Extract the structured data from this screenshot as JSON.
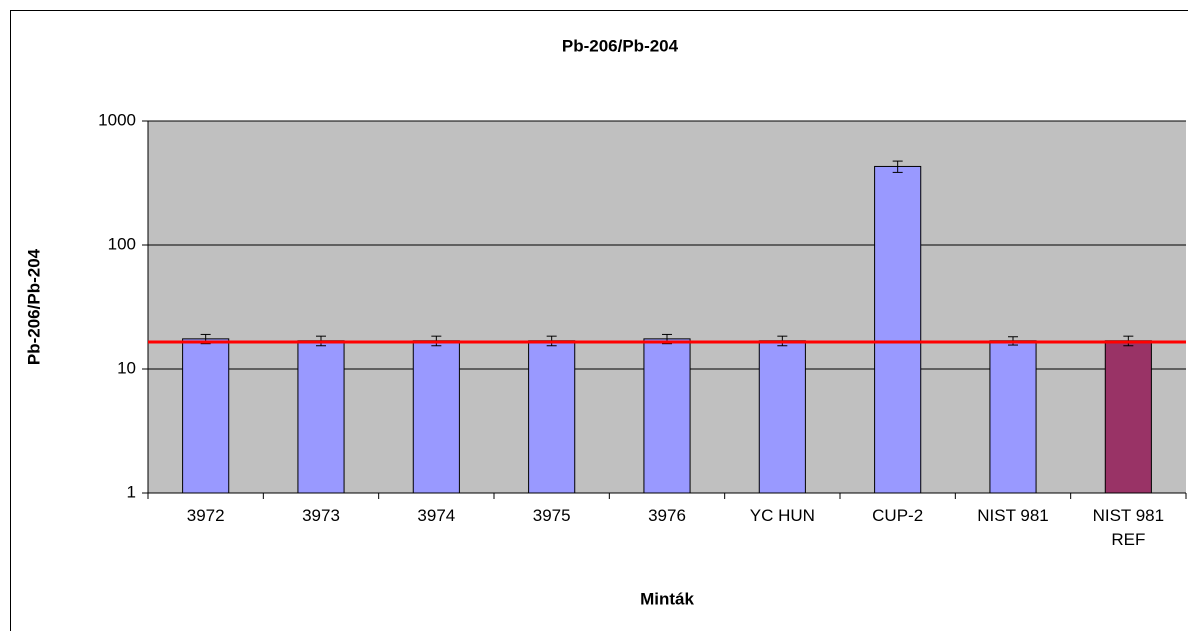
{
  "chart_data": {
    "type": "bar",
    "title": "Pb-206/Pb-204",
    "y_label": "Pb-206/Pb-204",
    "x_label": "Minták",
    "categories": [
      "3972",
      "3973",
      "3974",
      "3975",
      "3976",
      "YC HUN",
      "CUP-2",
      "NIST 981",
      "NIST 981 REF"
    ],
    "values": [
      17.5,
      16.9,
      16.9,
      16.9,
      17.5,
      16.9,
      430,
      16.9,
      16.9
    ],
    "errors": [
      1.5,
      1.5,
      1.5,
      1.5,
      1.5,
      1.5,
      45,
      1.3,
      1.5
    ],
    "colors": [
      "#9999ff",
      "#9999ff",
      "#9999ff",
      "#9999ff",
      "#9999ff",
      "#9999ff",
      "#9999ff",
      "#9999ff",
      "#993366"
    ],
    "ylim": [
      1,
      1000
    ],
    "yticks": [
      1,
      10,
      100,
      1000
    ],
    "log_y": true,
    "grid": true,
    "reference_line": {
      "value": 16.5,
      "color": "#ff0000"
    }
  }
}
